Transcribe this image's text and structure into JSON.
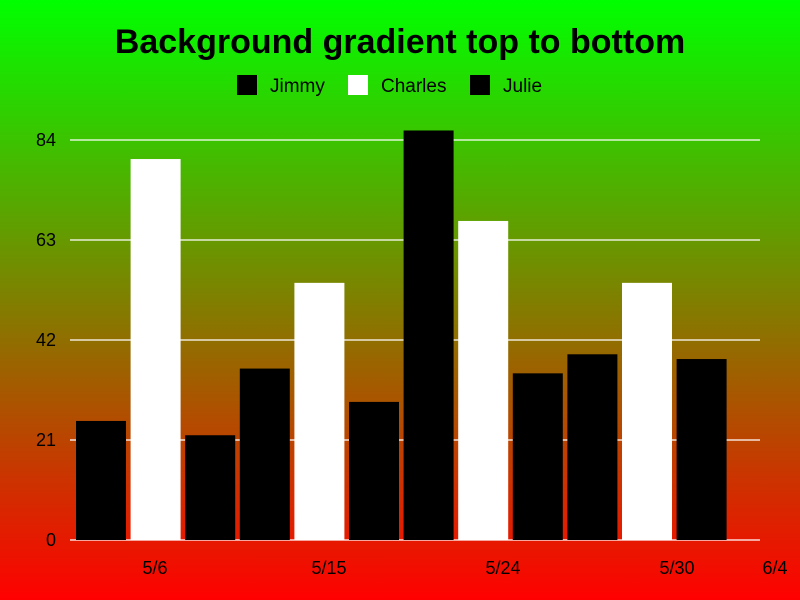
{
  "chart_data": {
    "type": "bar",
    "title": "Background gradient top to bottom",
    "categories": [
      "5/6",
      "5/15",
      "5/24",
      "5/30"
    ],
    "x_tick_labels": [
      "5/6",
      "5/15",
      "5/24",
      "5/30",
      "6/4"
    ],
    "series": [
      {
        "name": "Jimmy",
        "color": "#000000"
      },
      {
        "name": "Charles",
        "color": "#ffffff"
      },
      {
        "name": "Julie",
        "color": "#000000"
      }
    ],
    "bars": [
      {
        "series": "Jimmy",
        "value": 25
      },
      {
        "series": "Charles",
        "value": 80
      },
      {
        "series": "Julie",
        "value": 22
      },
      {
        "series": "Jimmy",
        "value": 36
      },
      {
        "series": "Charles",
        "value": 54
      },
      {
        "series": "Julie",
        "value": 29
      },
      {
        "series": "Jimmy",
        "value": 86
      },
      {
        "series": "Charles",
        "value": 67
      },
      {
        "series": "Julie",
        "value": 35
      },
      {
        "series": "Jimmy",
        "value": 39
      },
      {
        "series": "Charles",
        "value": 54
      },
      {
        "series": "Julie",
        "value": 38
      }
    ],
    "y_ticks": [
      0,
      21,
      42,
      63,
      84
    ],
    "ylim": [
      0,
      84
    ],
    "grid": true,
    "legend_position": "top",
    "background": {
      "top_color": "#00ff00",
      "bottom_color": "#ff0000"
    },
    "gridline_color": "#ffffff"
  }
}
